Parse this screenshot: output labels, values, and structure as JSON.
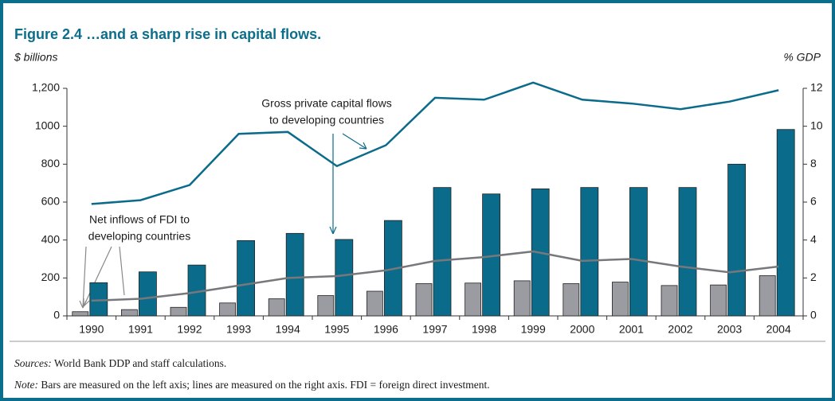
{
  "chart_data": {
    "type": "bar_line",
    "title": "Figure 2.4  …and a sharp rise in capital flows.",
    "y_label": "$ billions",
    "y2_label": "% GDP",
    "categories": [
      "1990",
      "1991",
      "1992",
      "1993",
      "1994",
      "1995",
      "1996",
      "1997",
      "1998",
      "1999",
      "2000",
      "2001",
      "2002",
      "2003",
      "2004"
    ],
    "series": [
      {
        "kind": "bar",
        "color": "#9b9ca1",
        "values": [
          22,
          33,
          45,
          68,
          90,
          107,
          130,
          170,
          173,
          185,
          170,
          178,
          160,
          163,
          212
        ]
      },
      {
        "kind": "bar",
        "color": "#0b6b8a",
        "values": [
          175,
          232,
          268,
          397,
          435,
          403,
          503,
          677,
          643,
          670,
          677,
          677,
          677,
          800,
          983
        ]
      },
      {
        "kind": "line",
        "axis": "y2",
        "color": "#0b6b8a",
        "values": [
          5.9,
          6.1,
          6.9,
          9.6,
          9.7,
          7.9,
          9.0,
          11.5,
          11.4,
          12.3,
          11.4,
          11.2,
          10.9,
          11.3,
          11.9
        ]
      },
      {
        "kind": "line",
        "axis": "y2",
        "color": "#77787b",
        "values": [
          0.8,
          0.9,
          1.2,
          1.6,
          2.0,
          2.1,
          2.4,
          2.9,
          3.1,
          3.4,
          2.9,
          3.0,
          2.6,
          2.3,
          2.6
        ]
      }
    ],
    "ylim": [
      0,
      1200
    ],
    "yticks": [
      0,
      200,
      400,
      600,
      800,
      1000,
      {
        "value": 1200,
        "label": "1,200"
      }
    ],
    "y2lim": [
      0,
      12
    ],
    "y2ticks": [
      0,
      2,
      4,
      6,
      8,
      10,
      12
    ],
    "annotations": [
      {
        "lines": [
          "Gross private capital flows",
          "to developing countries"
        ]
      },
      {
        "lines": [
          "Net inflows of FDI to",
          "developing countries"
        ]
      }
    ],
    "sources": {
      "label": "Sources:",
      "text": " World Bank DDP and staff calculations."
    },
    "note": {
      "label": "Note:",
      "text": " Bars are measured on the left axis; lines are measured on the right axis. FDI = foreign direct investment."
    }
  }
}
